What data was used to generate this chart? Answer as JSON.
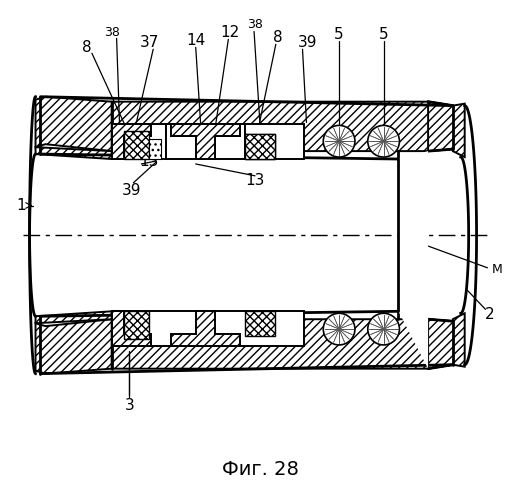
{
  "title": "Фиг. 28",
  "bg_color": "#ffffff",
  "fig_w": 5.19,
  "fig_h": 5.0,
  "dpi": 100,
  "lw": 1.4,
  "lw_thick": 2.0
}
